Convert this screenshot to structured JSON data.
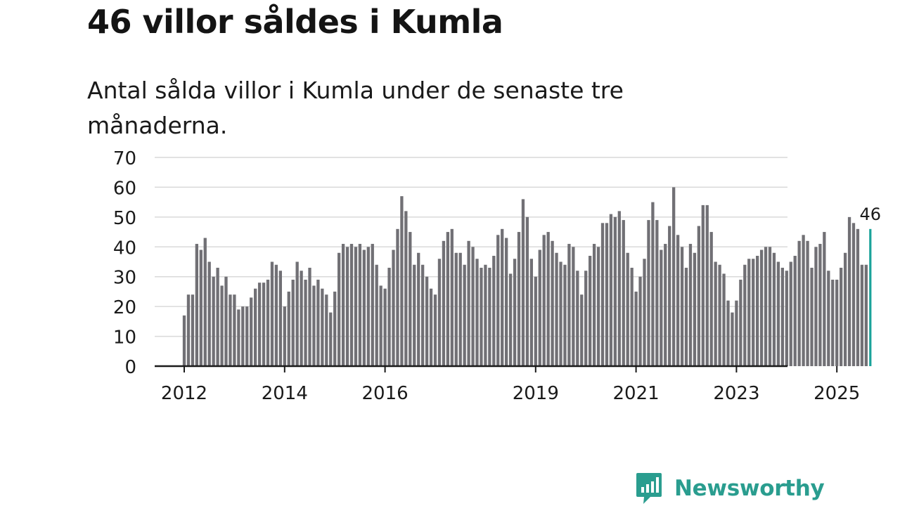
{
  "title": "46 villor såldes i Kumla",
  "subtitle": "Antal sålda villor i Kumla under de senaste tre månaderna.",
  "brand": {
    "name": "Newsworthy",
    "color": "#2a9d8f"
  },
  "colors": {
    "bars": "#717075",
    "highlight": "#1aa39a",
    "grid": "#d9d9d9",
    "axis": "#1a1a1a"
  },
  "chart_data": {
    "type": "bar",
    "title": "46 villor såldes i Kumla",
    "subtitle": "Antal sålda villor i Kumla under de senaste tre månaderna.",
    "xlabel": "",
    "ylabel": "",
    "ylim": [
      0,
      70
    ],
    "yticks": [
      0,
      10,
      20,
      30,
      40,
      50,
      60,
      70
    ],
    "grid": true,
    "frequency": "monthly, rolling three-month count",
    "start": "2012-01",
    "x_tick_labels": [
      "2012",
      "2014",
      "2016",
      "2019",
      "2021",
      "2023",
      "2025"
    ],
    "values": [
      17,
      24,
      24,
      41,
      39,
      43,
      35,
      30,
      33,
      27,
      30,
      24,
      24,
      19,
      20,
      20,
      23,
      26,
      28,
      28,
      29,
      35,
      34,
      32,
      20,
      25,
      29,
      35,
      32,
      29,
      33,
      27,
      29,
      26,
      24,
      18,
      25,
      38,
      41,
      40,
      41,
      40,
      41,
      39,
      40,
      41,
      34,
      27,
      26,
      33,
      39,
      46,
      57,
      52,
      45,
      34,
      38,
      34,
      30,
      26,
      24,
      36,
      42,
      45,
      46,
      38,
      38,
      34,
      42,
      40,
      36,
      33,
      34,
      33,
      37,
      44,
      46,
      43,
      31,
      36,
      45,
      56,
      50,
      36,
      30,
      39,
      44,
      45,
      42,
      38,
      35,
      34,
      41,
      40,
      32,
      24,
      32,
      37,
      41,
      40,
      48,
      48,
      51,
      50,
      52,
      49,
      38,
      33,
      25,
      30,
      36,
      49,
      55,
      49,
      39,
      41,
      47,
      60,
      44,
      40,
      33,
      41,
      38,
      47,
      54,
      54,
      45,
      35,
      34,
      31,
      22,
      18,
      22,
      29,
      34,
      36,
      36,
      37,
      39,
      40,
      40,
      38,
      35,
      33,
      32,
      35,
      37,
      42,
      44,
      42,
      33,
      40,
      41,
      45,
      32,
      29,
      29,
      33,
      38,
      50,
      48,
      46,
      34,
      34,
      46
    ],
    "highlight_last": true,
    "annotation": "46"
  }
}
